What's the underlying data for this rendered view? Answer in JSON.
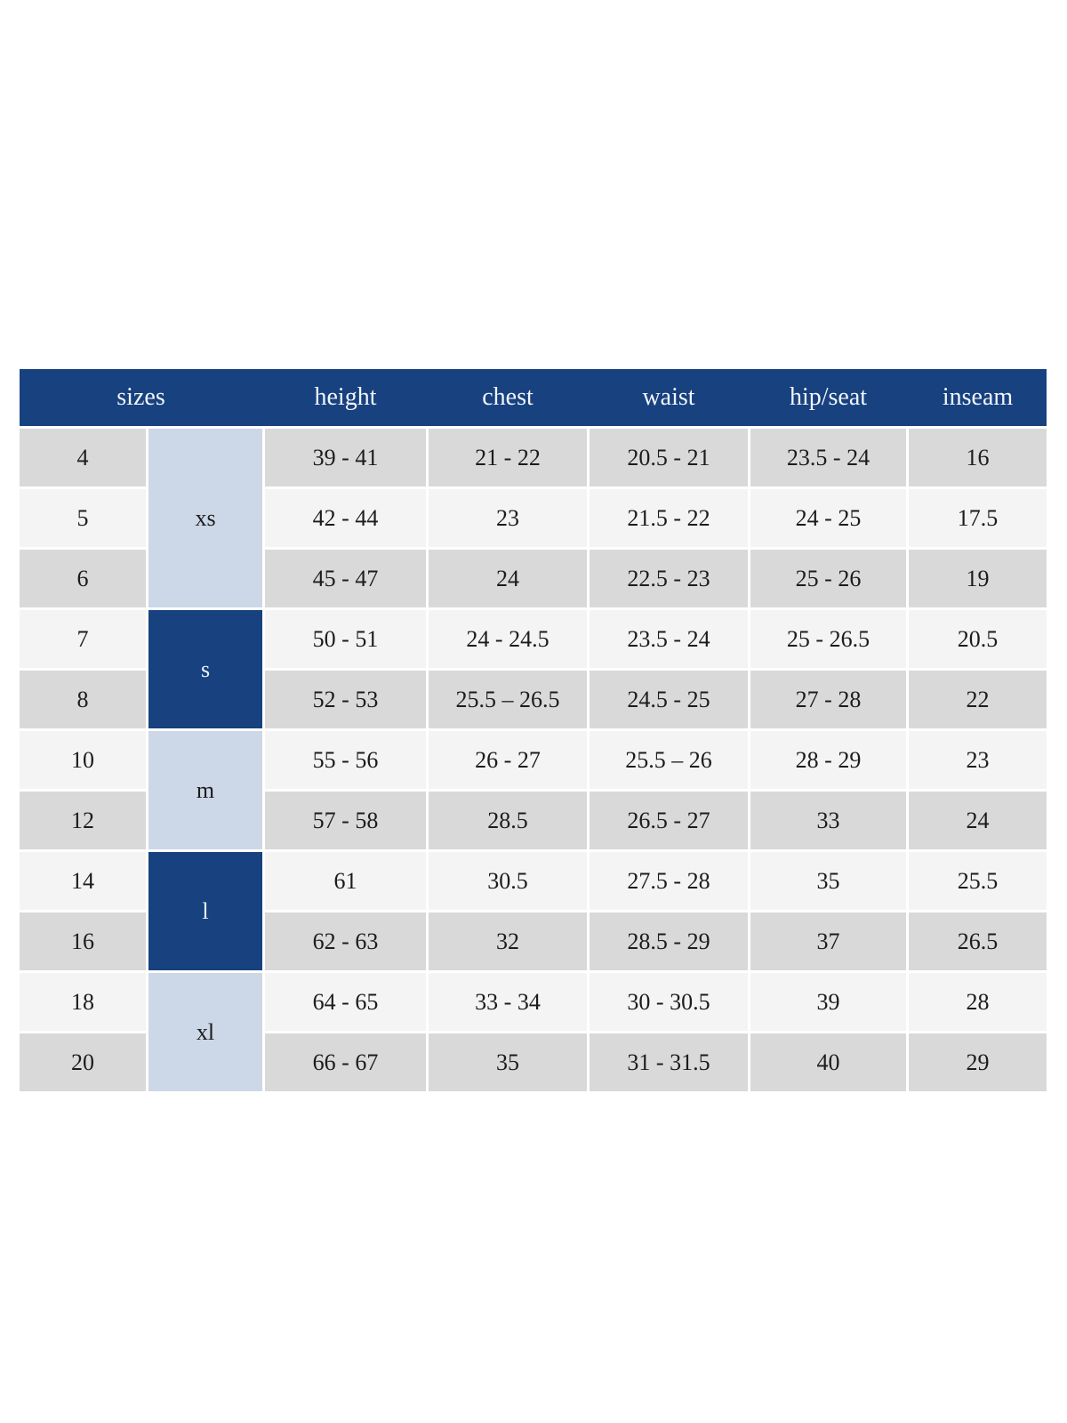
{
  "colors": {
    "header_bg": "#17417f",
    "header_text": "#f2f5fa",
    "group_dark_bg": "#17417f",
    "group_light_bg": "#ccd7e7",
    "row_stripe_gray": "#d9d9d9",
    "row_stripe_light": "#f4f4f4",
    "body_text": "#1c1c1c",
    "page_bg": "#ffffff"
  },
  "chart_data": {
    "type": "table",
    "columns": [
      "sizes",
      "height",
      "chest",
      "waist",
      "hip/seat",
      "inseam"
    ],
    "size_groups": [
      {
        "label": "xs",
        "row_span": 3,
        "style": "light"
      },
      {
        "label": "s",
        "row_span": 2,
        "style": "dark"
      },
      {
        "label": "m",
        "row_span": 2,
        "style": "light"
      },
      {
        "label": "l",
        "row_span": 2,
        "style": "dark"
      },
      {
        "label": "xl",
        "row_span": 2,
        "style": "light"
      }
    ],
    "rows": [
      {
        "size": "4",
        "group": "xs",
        "height": "39 - 41",
        "chest": "21 - 22",
        "waist": "20.5 - 21",
        "hip_seat": "23.5 - 24",
        "inseam": "16"
      },
      {
        "size": "5",
        "group": "xs",
        "height": "42 - 44",
        "chest": "23",
        "waist": "21.5 - 22",
        "hip_seat": "24 - 25",
        "inseam": "17.5"
      },
      {
        "size": "6",
        "group": "xs",
        "height": "45 - 47",
        "chest": "24",
        "waist": "22.5 - 23",
        "hip_seat": "25 - 26",
        "inseam": "19"
      },
      {
        "size": "7",
        "group": "s",
        "height": "50 - 51",
        "chest": "24 - 24.5",
        "waist": "23.5 - 24",
        "hip_seat": "25 - 26.5",
        "inseam": "20.5"
      },
      {
        "size": "8",
        "group": "s",
        "height": "52 - 53",
        "chest": "25.5 – 26.5",
        "waist": "24.5 - 25",
        "hip_seat": "27 - 28",
        "inseam": "22"
      },
      {
        "size": "10",
        "group": "m",
        "height": "55 - 56",
        "chest": "26 - 27",
        "waist": "25.5 – 26",
        "hip_seat": "28 - 29",
        "inseam": "23"
      },
      {
        "size": "12",
        "group": "m",
        "height": "57 - 58",
        "chest": "28.5",
        "waist": "26.5 - 27",
        "hip_seat": "33",
        "inseam": "24"
      },
      {
        "size": "14",
        "group": "l",
        "height": "61",
        "chest": "30.5",
        "waist": "27.5 - 28",
        "hip_seat": "35",
        "inseam": "25.5"
      },
      {
        "size": "16",
        "group": "l",
        "height": "62 - 63",
        "chest": "32",
        "waist": "28.5 - 29",
        "hip_seat": "37",
        "inseam": "26.5"
      },
      {
        "size": "18",
        "group": "xl",
        "height": "64 - 65",
        "chest": "33 - 34",
        "waist": "30 - 30.5",
        "hip_seat": "39",
        "inseam": "28"
      },
      {
        "size": "20",
        "group": "xl",
        "height": "66 - 67",
        "chest": "35",
        "waist": "31 - 31.5",
        "hip_seat": "40",
        "inseam": "29"
      }
    ]
  }
}
